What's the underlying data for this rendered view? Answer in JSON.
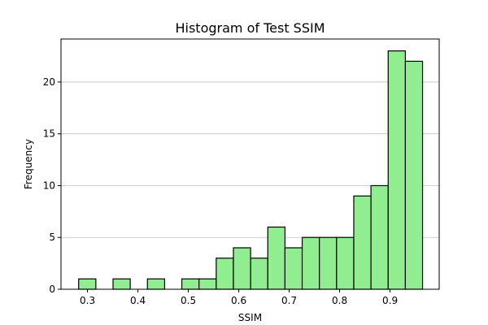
{
  "chart_data": {
    "type": "bar",
    "title": "Histogram of Test SSIM",
    "xlabel": "SSIM",
    "ylabel": "Frequency",
    "bin_start": 0.2825,
    "bin_width": 0.0341,
    "values": [
      1,
      0,
      1,
      0,
      1,
      0,
      1,
      1,
      3,
      4,
      3,
      6,
      4,
      5,
      5,
      5,
      9,
      10,
      23,
      22
    ],
    "xlim": [
      0.2475,
      0.9975
    ],
    "ylim": [
      0,
      24.15
    ],
    "xticks": [
      {
        "value": 0.3,
        "label": "0.3"
      },
      {
        "value": 0.4,
        "label": "0.4"
      },
      {
        "value": 0.5,
        "label": "0.5"
      },
      {
        "value": 0.6,
        "label": "0.6"
      },
      {
        "value": 0.7,
        "label": "0.7"
      },
      {
        "value": 0.8,
        "label": "0.8"
      },
      {
        "value": 0.9,
        "label": "0.9"
      }
    ],
    "yticks": [
      {
        "value": 0,
        "label": "0"
      },
      {
        "value": 5,
        "label": "5"
      },
      {
        "value": 10,
        "label": "10"
      },
      {
        "value": 15,
        "label": "15"
      },
      {
        "value": 20,
        "label": "20"
      }
    ],
    "grid": "y",
    "bar_color": "#90ee90",
    "edge_color": "#000000",
    "grid_color": "#c0c0c0"
  }
}
